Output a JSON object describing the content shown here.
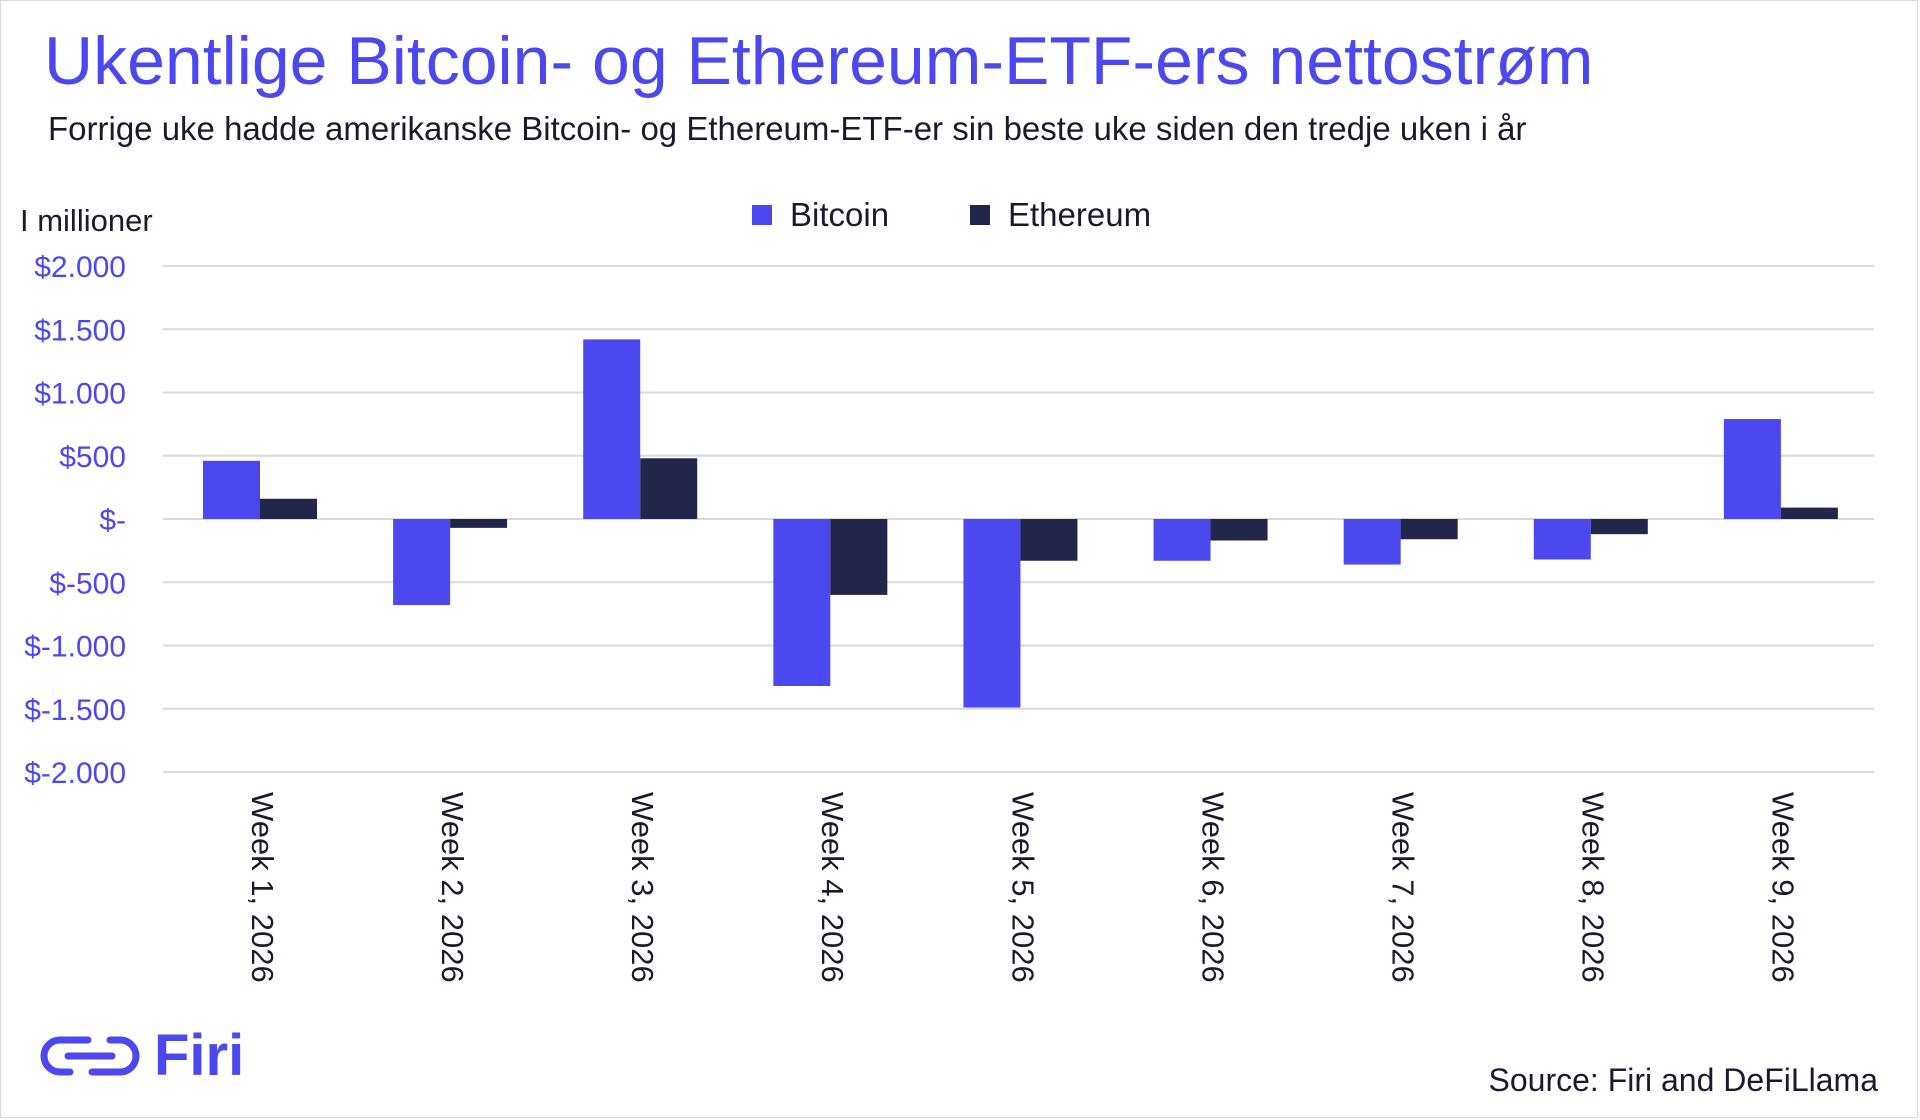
{
  "header": {
    "title": "Ukentlige Bitcoin- og Ethereum-ETF-ers nettostrøm",
    "subtitle": "Forrige uke hadde amerikanske Bitcoin- og Ethereum-ETF-er sin beste uke siden den tredje uken i år",
    "unit_label": "I millioner"
  },
  "legend": {
    "bitcoin_label": "Bitcoin",
    "ethereum_label": "Ethereum"
  },
  "footer": {
    "logo_text": "Firi",
    "source": "Source: Firi and DeFiLlama"
  },
  "colors": {
    "bitcoin": "#4a48ee",
    "ethereum": "#22264a",
    "title": "#4a48ee",
    "tick_labels": "#4a48ee",
    "grid": "#d9d9d9"
  },
  "chart_data": {
    "type": "bar",
    "title": "Ukentlige Bitcoin- og Ethereum-ETF-ers nettostrøm",
    "ylabel": "I millioner",
    "ylim": [
      -2000,
      2000
    ],
    "yticks": [
      2000,
      1500,
      1000,
      500,
      0,
      -500,
      -1000,
      -1500,
      -2000
    ],
    "ytick_labels": [
      "$2.000",
      "$1.500",
      "$1.000",
      "$500",
      "$-",
      "$-500",
      "$-1.000",
      "$-1.500",
      "$-2.000"
    ],
    "grid": true,
    "legend_position": "top-center",
    "categories": [
      "Week 1, 2026",
      "Week 2, 2026",
      "Week 3, 2026",
      "Week 4, 2026",
      "Week 5, 2026",
      "Week 6, 2026",
      "Week 7, 2026",
      "Week 8, 2026",
      "Week 9, 2026"
    ],
    "series": [
      {
        "name": "Bitcoin",
        "values": [
          460,
          -680,
          1420,
          -1320,
          -1490,
          -330,
          -360,
          -320,
          790
        ]
      },
      {
        "name": "Ethereum",
        "values": [
          160,
          -70,
          480,
          -600,
          -330,
          -170,
          -160,
          -120,
          90
        ]
      }
    ]
  }
}
